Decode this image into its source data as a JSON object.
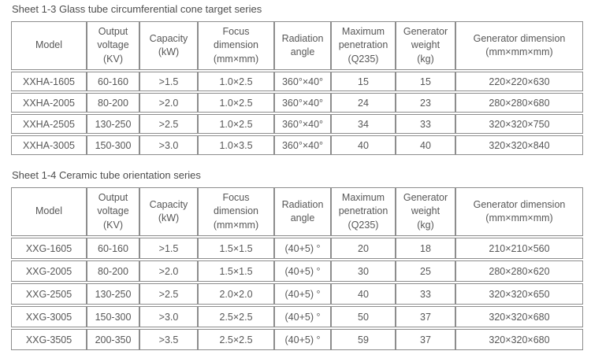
{
  "theme": {
    "text_color": "#575757",
    "title_color": "#4d4d4d",
    "border_color": "#8d8d8d",
    "background_color": "#ffffff"
  },
  "tables": [
    {
      "title": "Sheet 1-3 Glass tube circumferential cone target series",
      "headers": [
        "Model",
        "Output\nvoltage\n(KV)",
        "Capacity\n(kW)",
        "Focus\ndimension\n(mm×mm)",
        "Radiation\nangle",
        "Maximum\npenetration\n(Q235)",
        "Generator\nweight\n(kg)",
        "Generator dimension\n(mm×mm×mm)"
      ],
      "rows": [
        [
          "XXHA-1605",
          "60-160",
          ">1.5",
          "1.0×2.5",
          "360°×40°",
          "15",
          "15",
          "220×220×630"
        ],
        [
          "XXHA-2005",
          "80-200",
          ">2.0",
          "1.0×2.5",
          "360°×40°",
          "24",
          "23",
          "280×280×680"
        ],
        [
          "XXHA-2505",
          "130-250",
          ">2.5",
          "1.0×2.5",
          "360°×40°",
          "34",
          "33",
          "320×320×750"
        ],
        [
          "XXHA-3005",
          "150-300",
          ">3.0",
          "1.0×3.5",
          "360°×40°",
          "40",
          "40",
          "320×320×840"
        ]
      ]
    },
    {
      "title": "Sheet 1-4 Ceramic tube orientation series",
      "headers": [
        "Model",
        "Output\nvoltage\n(KV)",
        "Capacity\n(kW)",
        "Focus\ndimension\n(mm×mm)",
        "Radiation\nangle",
        "Maximum\npenetration\n(Q235)",
        "Generator\nweight\n(kg)",
        "Generator dimension\n(mm×mm×mm)"
      ],
      "rows": [
        [
          "XXG-1605",
          "60-160",
          ">1.5",
          "1.5×1.5",
          "(40+5) °",
          "20",
          "18",
          "210×210×560"
        ],
        [
          "XXG-2005",
          "80-200",
          ">2.0",
          "1.5×1.5",
          "(40+5) °",
          "30",
          "25",
          "280×280×620"
        ],
        [
          "XXG-2505",
          "130-250",
          ">2.5",
          "2.0×2.0",
          "(40+5) °",
          "40",
          "33",
          "320×320×650"
        ],
        [
          "XXG-3005",
          "150-300",
          ">3.0",
          "2.5×2.5",
          "(40+5) °",
          "50",
          "37",
          "320×320×680"
        ],
        [
          "XXG-3505",
          "200-350",
          ">3.5",
          "2.5×2.5",
          "(40+5) °",
          "59",
          "37",
          "320×320×680"
        ]
      ]
    }
  ]
}
